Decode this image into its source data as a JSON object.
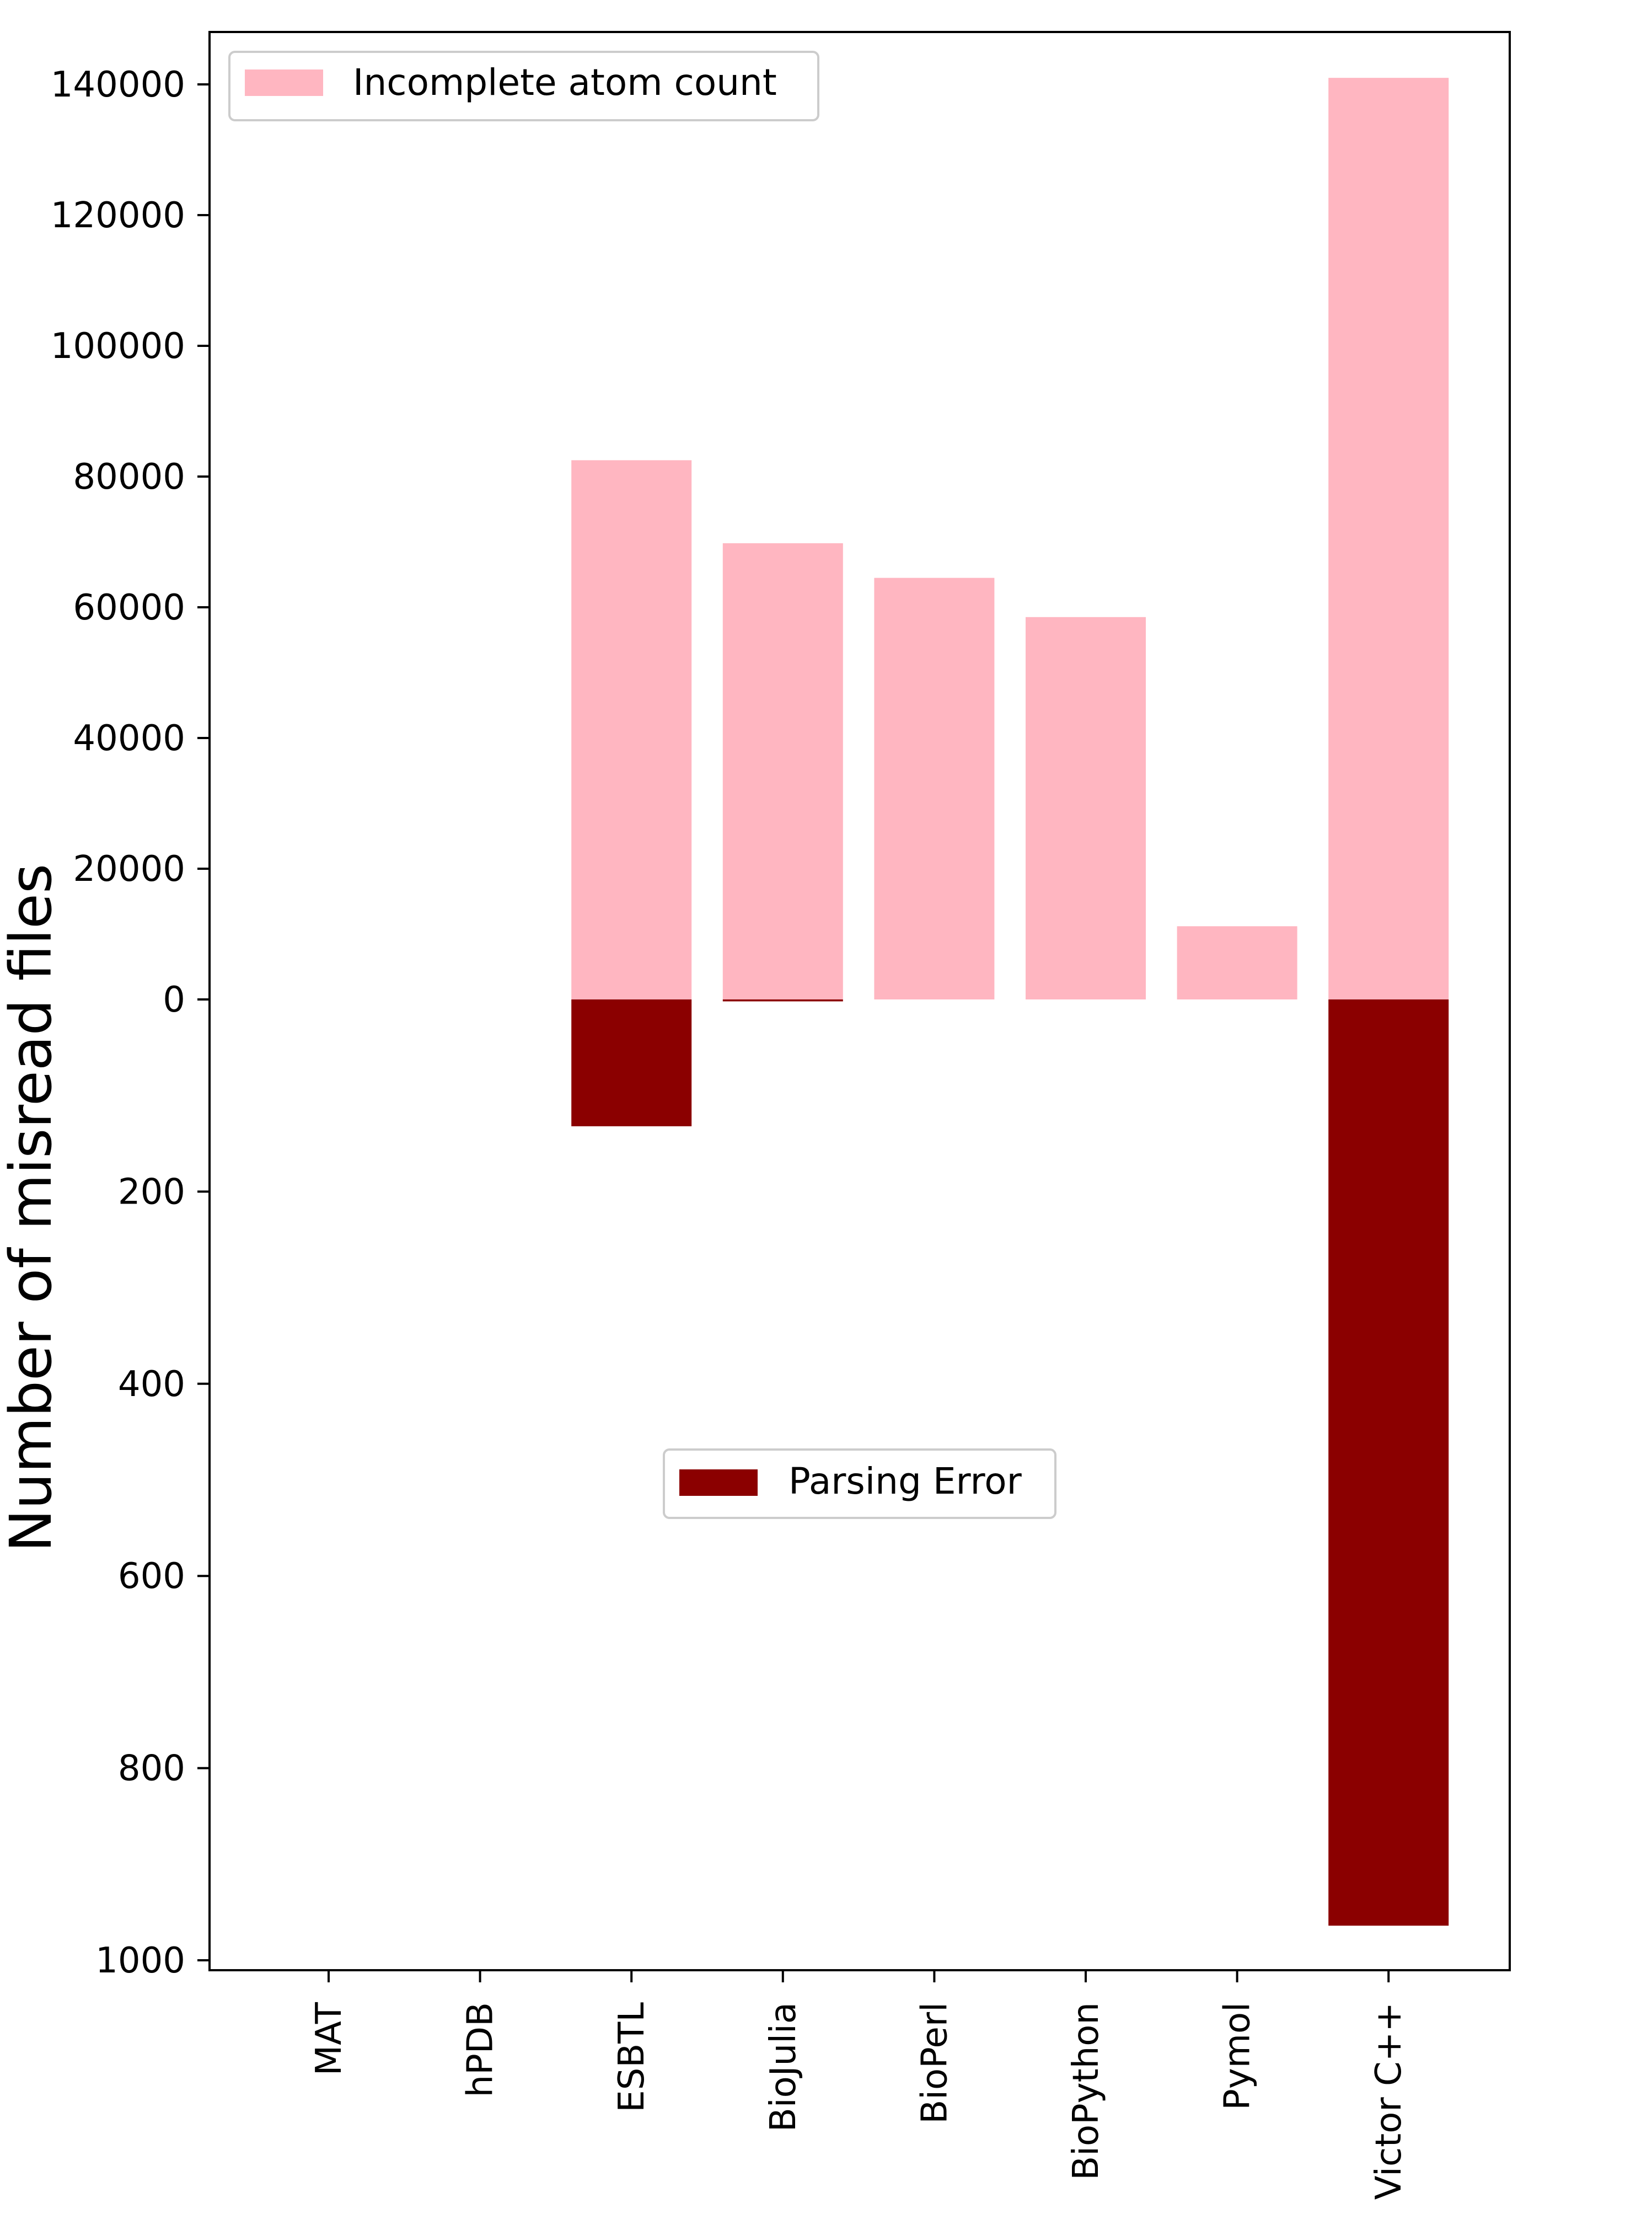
{
  "chart_data": {
    "type": "bar",
    "categories": [
      "MAT",
      "hPDB",
      "ESBTL",
      "BioJulia",
      "BioPerl",
      "BioPython",
      "Pymol",
      "Victor C++"
    ],
    "ylabel": "Number of misread files",
    "top_panel": {
      "ylim": [
        0,
        144000
      ],
      "ticks": [
        0,
        20000,
        40000,
        60000,
        80000,
        100000,
        120000,
        140000
      ],
      "tick_labels": [
        "0",
        "20000",
        "40000",
        "60000",
        "80000",
        "100000",
        "120000",
        "140000"
      ]
    },
    "bottom_panel": {
      "ylim": [
        0,
        1000
      ],
      "ticks": [
        200,
        400,
        600,
        800,
        1000
      ],
      "tick_labels": [
        "200",
        "400",
        "600",
        "800",
        "1000"
      ]
    },
    "series": [
      {
        "name": "Incomplete atom count",
        "color": "#ffb6c1",
        "panel": "top",
        "values": [
          0,
          0,
          82500,
          69800,
          64500,
          58500,
          11200,
          141000
        ]
      },
      {
        "name": "Parsing Error",
        "color": "#8b0000",
        "panel": "bottom",
        "values": [
          0,
          0,
          132,
          2,
          0,
          0,
          0,
          964
        ]
      }
    ],
    "legend": [
      {
        "label": "Incomplete atom count",
        "placement": "top-left"
      },
      {
        "label": "Parsing Error",
        "placement": "center"
      }
    ],
    "grid": false
  }
}
